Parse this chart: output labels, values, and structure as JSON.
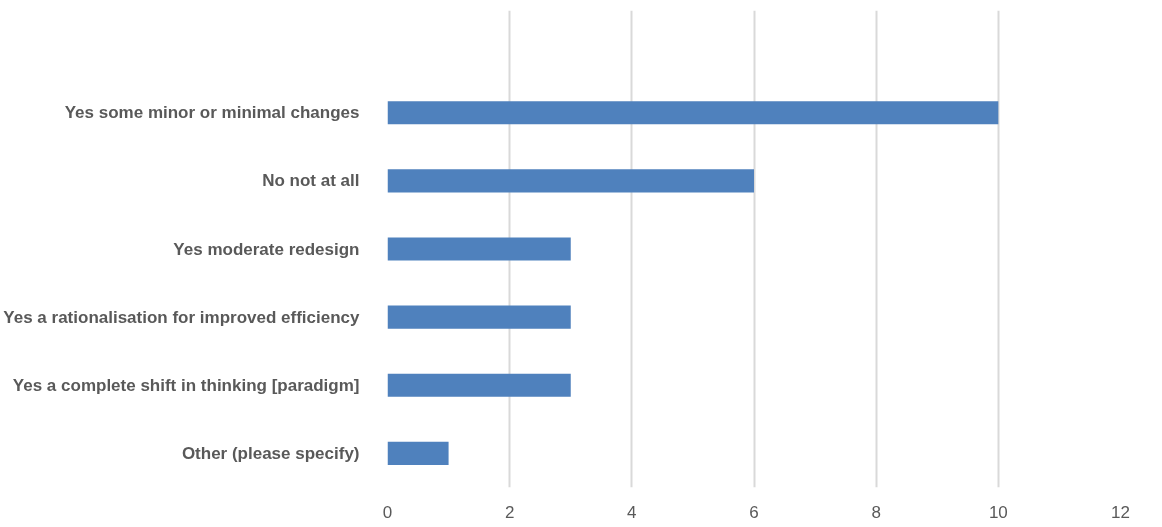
{
  "chart_data": {
    "type": "bar",
    "orientation": "horizontal",
    "categories": [
      "Yes some minor or minimal changes",
      "No not at all",
      "Yes moderate redesign",
      "Yes a rationalisation for improved efficiency",
      "Yes a complete shift in thinking [paradigm]",
      "Other (please specify)"
    ],
    "values": [
      10,
      6,
      3,
      3,
      3,
      1
    ],
    "color": "#4f81bd",
    "xlim": [
      0,
      12
    ],
    "xticks": [
      0,
      2,
      4,
      6,
      8,
      10,
      12
    ],
    "grid": "x"
  }
}
